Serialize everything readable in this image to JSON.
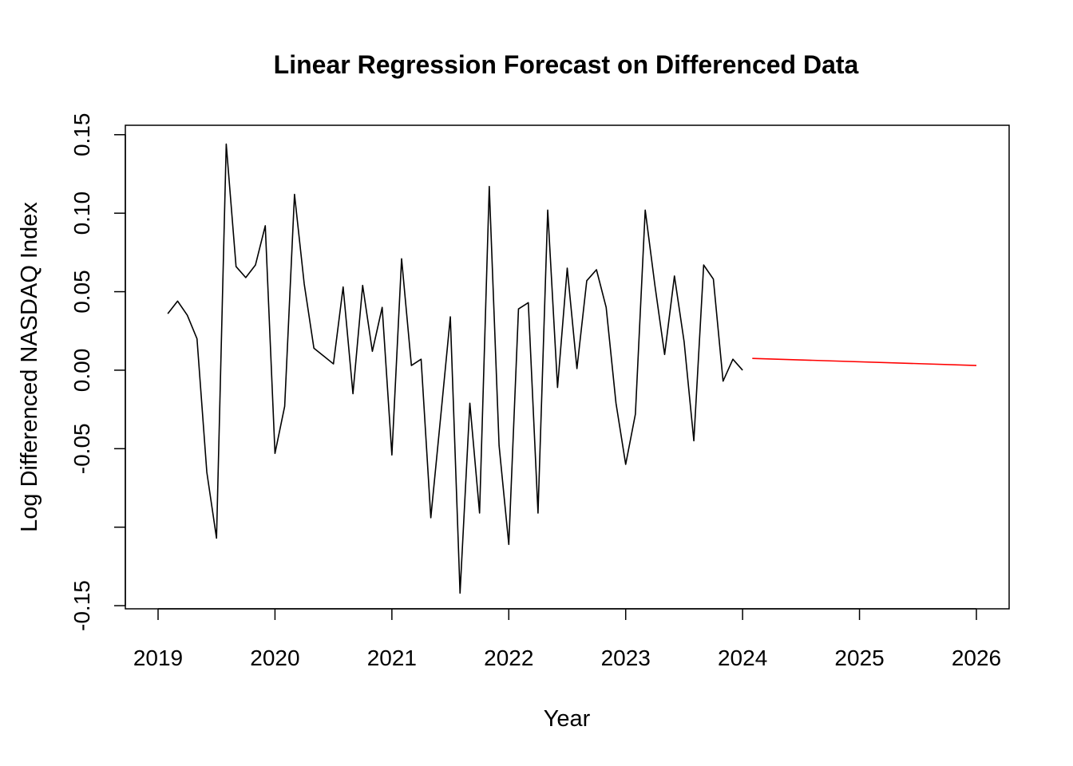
{
  "chart_data": {
    "type": "line",
    "title": "Linear Regression Forecast on Differenced Data",
    "xlabel": "Year",
    "ylabel": "Log Differenced NASDAQ Index",
    "xlim": [
      2018.72,
      2026.28
    ],
    "ylim": [
      -0.152,
      0.156
    ],
    "x_ticks": [
      2019,
      2020,
      2021,
      2022,
      2023,
      2024,
      2025,
      2026
    ],
    "x_tick_labels": [
      "2019",
      "2020",
      "2021",
      "2022",
      "2023",
      "2024",
      "2025",
      "2026"
    ],
    "y_ticks": [
      -0.15,
      -0.1,
      -0.05,
      0.0,
      0.05,
      0.1,
      0.15
    ],
    "y_tick_labels": [
      "-0.15",
      "",
      "-0.05",
      "0.00",
      "0.05",
      "0.10",
      "0.15"
    ],
    "grid": false,
    "series": [
      {
        "color": "#000000",
        "x": [
          2019.083,
          2019.167,
          2019.25,
          2019.333,
          2019.417,
          2019.5,
          2019.583,
          2019.667,
          2019.75,
          2019.833,
          2019.917,
          2020.0,
          2020.083,
          2020.167,
          2020.25,
          2020.333,
          2020.417,
          2020.5,
          2020.583,
          2020.667,
          2020.75,
          2020.833,
          2020.917,
          2021.0,
          2021.083,
          2021.167,
          2021.25,
          2021.333,
          2021.417,
          2021.5,
          2021.583,
          2021.667,
          2021.75,
          2021.833,
          2021.917,
          2022.0,
          2022.083,
          2022.167,
          2022.25,
          2022.333,
          2022.417,
          2022.5,
          2022.583,
          2022.667,
          2022.75,
          2022.833,
          2022.917,
          2023.0,
          2023.083,
          2023.167,
          2023.25,
          2023.333,
          2023.417,
          2023.5,
          2023.583,
          2023.667,
          2023.75,
          2023.833,
          2023.917,
          2024.0
        ],
        "values": [
          0.036,
          0.044,
          0.035,
          0.02,
          -0.065,
          -0.107,
          0.144,
          0.066,
          0.059,
          0.067,
          0.092,
          -0.053,
          -0.023,
          0.112,
          0.055,
          0.014,
          0.009,
          0.004,
          0.053,
          -0.015,
          0.054,
          0.012,
          0.04,
          -0.054,
          0.071,
          0.003,
          0.007,
          -0.094,
          -0.03,
          0.034,
          -0.142,
          -0.021,
          -0.091,
          0.117,
          -0.048,
          -0.111,
          0.039,
          0.043,
          -0.091,
          0.102,
          -0.011,
          0.065,
          0.001,
          0.057,
          0.064,
          0.04,
          -0.021,
          -0.06,
          -0.028,
          0.102,
          0.054,
          0.01,
          0.06,
          0.018,
          -0.045,
          0.067,
          0.058,
          -0.007,
          0.007,
          0.0
        ]
      },
      {
        "color": "#ff0000",
        "x": [
          2024.083,
          2026.0
        ],
        "values": [
          0.0075,
          0.003
        ]
      }
    ]
  }
}
